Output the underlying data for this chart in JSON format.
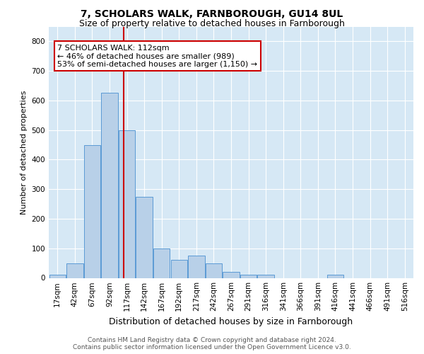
{
  "title": "7, SCHOLARS WALK, FARNBOROUGH, GU14 8UL",
  "subtitle": "Size of property relative to detached houses in Farnborough",
  "xlabel": "Distribution of detached houses by size in Farnborough",
  "ylabel": "Number of detached properties",
  "bins": [
    "17sqm",
    "42sqm",
    "67sqm",
    "92sqm",
    "117sqm",
    "142sqm",
    "167sqm",
    "192sqm",
    "217sqm",
    "242sqm",
    "267sqm",
    "291sqm",
    "316sqm",
    "341sqm",
    "366sqm",
    "391sqm",
    "416sqm",
    "441sqm",
    "466sqm",
    "491sqm",
    "516sqm"
  ],
  "values": [
    10,
    50,
    450,
    625,
    500,
    275,
    100,
    60,
    75,
    50,
    20,
    10,
    10,
    0,
    0,
    0,
    10,
    0,
    0,
    0,
    0
  ],
  "bar_color": "#b8d0e8",
  "bar_edge_color": "#5b9bd5",
  "bar_width": 0.95,
  "vline_color": "#cc0000",
  "annotation_text": "7 SCHOLARS WALK: 112sqm\n← 46% of detached houses are smaller (989)\n53% of semi-detached houses are larger (1,150) →",
  "annotation_box_color": "#ffffff",
  "annotation_box_edge": "#cc0000",
  "ylim": [
    0,
    850
  ],
  "yticks": [
    0,
    100,
    200,
    300,
    400,
    500,
    600,
    700,
    800
  ],
  "background_color": "#d6e8f5",
  "footer_line1": "Contains HM Land Registry data © Crown copyright and database right 2024.",
  "footer_line2": "Contains public sector information licensed under the Open Government Licence v3.0.",
  "title_fontsize": 10,
  "subtitle_fontsize": 9,
  "xlabel_fontsize": 9,
  "ylabel_fontsize": 8,
  "tick_fontsize": 7.5,
  "annotation_fontsize": 8,
  "footer_fontsize": 6.5
}
